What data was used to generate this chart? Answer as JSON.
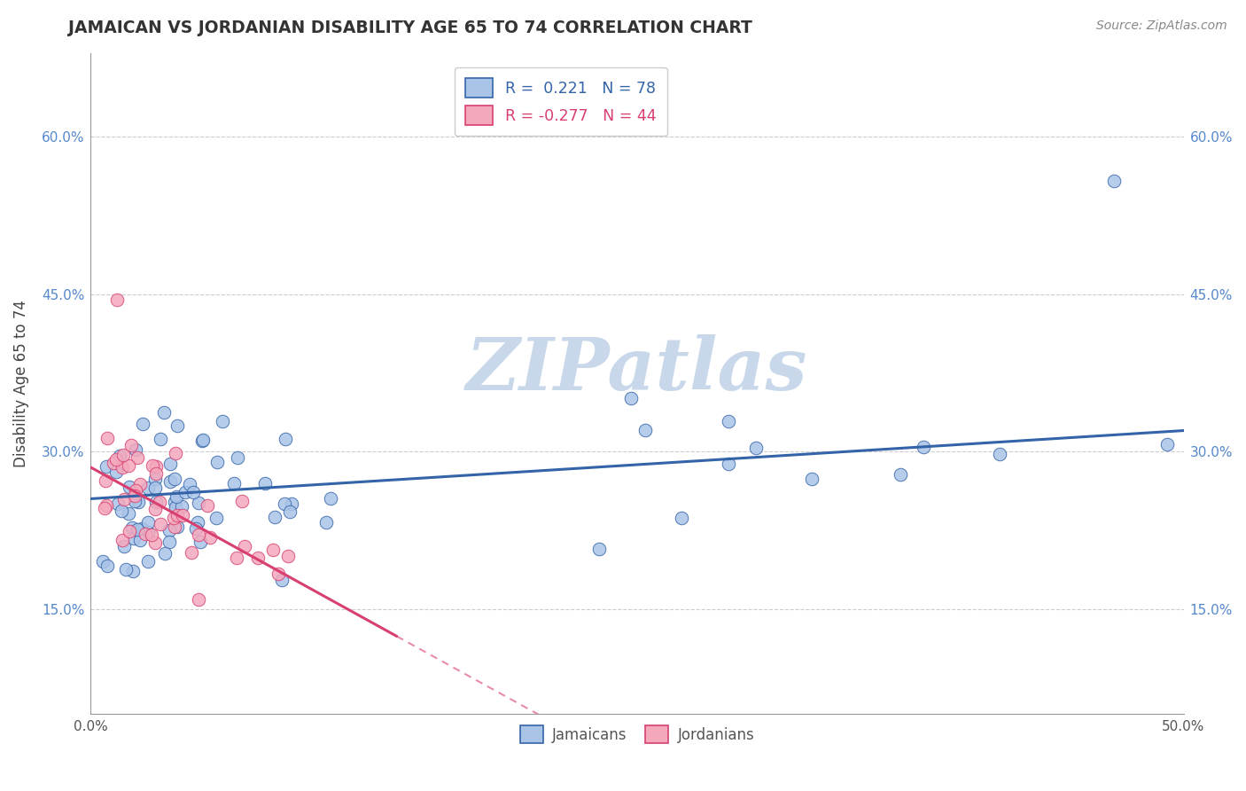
{
  "title": "JAMAICAN VS JORDANIAN DISABILITY AGE 65 TO 74 CORRELATION CHART",
  "source": "Source: ZipAtlas.com",
  "ylabel": "Disability Age 65 to 74",
  "xlim": [
    0.0,
    0.5
  ],
  "ylim": [
    0.05,
    0.68
  ],
  "xticks": [
    0.0,
    0.1,
    0.2,
    0.3,
    0.4,
    0.5
  ],
  "xtick_labels": [
    "0.0%",
    "",
    "",
    "",
    "",
    "50.0%"
  ],
  "yticks": [
    0.15,
    0.3,
    0.45,
    0.6
  ],
  "ytick_labels": [
    "15.0%",
    "30.0%",
    "45.0%",
    "60.0%"
  ],
  "r_jamaican": 0.221,
  "n_jamaican": 78,
  "r_jordanian": -0.277,
  "n_jordanian": 44,
  "jamaican_color": "#aac4e8",
  "jordanian_color": "#f4a8bc",
  "trend_jamaican_color": "#3464a8",
  "trend_jordanian_color": "#d84070",
  "watermark": "ZIPatlas",
  "watermark_color": "#c8d8ea",
  "background_color": "#ffffff",
  "legend_label_jamaican": "Jamaicans",
  "legend_label_jordanian": "Jordanians"
}
